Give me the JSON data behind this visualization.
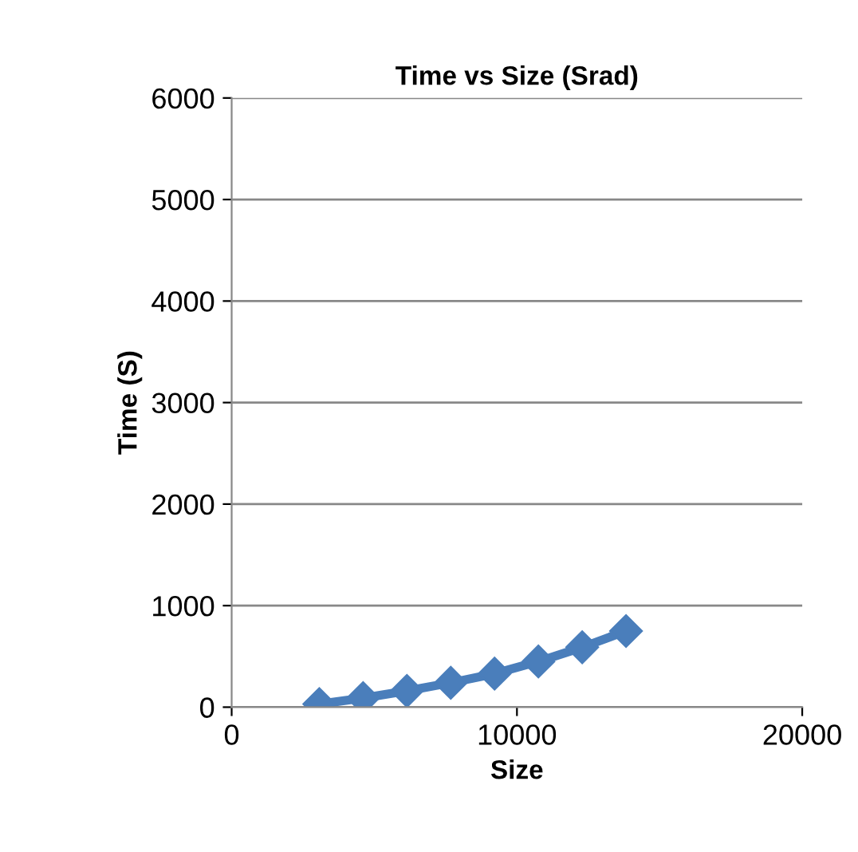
{
  "chart_data": {
    "type": "line",
    "title": "Time vs Size (Srad)",
    "xlabel": "Size",
    "ylabel": "Time (S)",
    "x": [
      3072,
      4608,
      6144,
      7680,
      9216,
      10752,
      12288,
      13824
    ],
    "series": [
      {
        "color": "#4a7ebb",
        "values": [
          30,
          90,
          160,
          240,
          330,
          450,
          590,
          750
        ]
      }
    ],
    "xlim": [
      0,
      20000
    ],
    "xticks": [
      0,
      10000,
      20000
    ],
    "ylim": [
      0,
      6000
    ],
    "yticks": [
      0,
      1000,
      2000,
      3000,
      4000,
      5000,
      6000
    ],
    "grid": "y",
    "marker": "diamond",
    "line_style": "solid",
    "legend": false
  }
}
